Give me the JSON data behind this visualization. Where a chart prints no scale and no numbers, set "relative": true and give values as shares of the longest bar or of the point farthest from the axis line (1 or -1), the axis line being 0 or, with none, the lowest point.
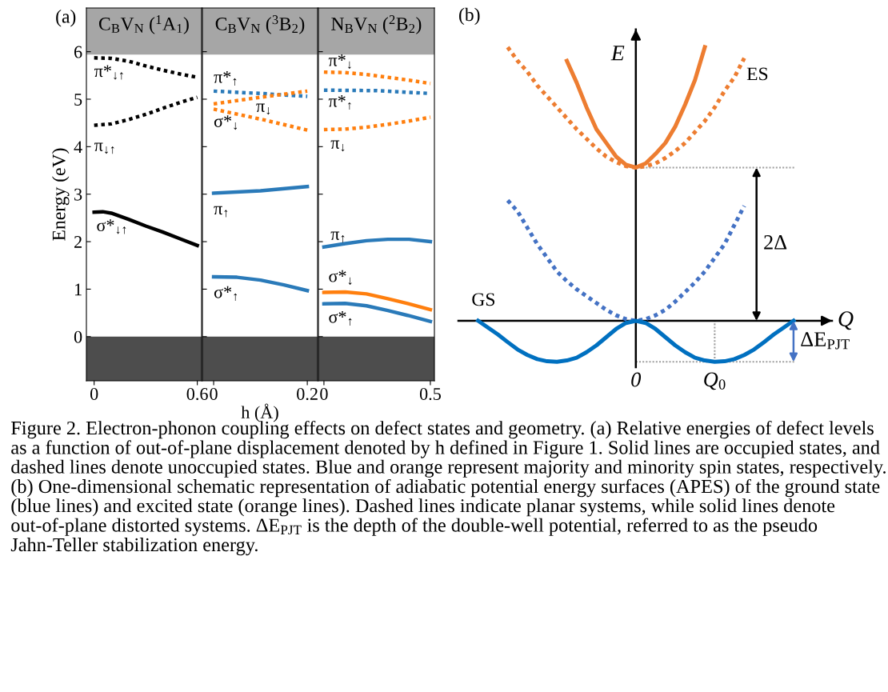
{
  "chart_data": [
    {
      "type": "line",
      "title": "C$_{B}$V$_{N}$ ($^{1}$A$_{1}$)",
      "ylabel": "Energy (eV)",
      "xlim": [
        -0.045,
        0.625
      ],
      "xticks": [
        0,
        0.6
      ],
      "ylim": [
        -0.93,
        6.92
      ],
      "yticks": [
        0,
        1,
        2,
        3,
        4,
        5,
        6
      ],
      "bands": [
        {
          "axis": "y",
          "from": 5.94,
          "to": 6.92,
          "color": "#a6a6a6"
        },
        {
          "axis": "y",
          "from": -0.93,
          "to": 0,
          "color": "#4d4d4d"
        }
      ],
      "series": [
        {
          "name": "π*$_{↓↑}$",
          "color": "#000000",
          "line_style": "dotted",
          "x": [
            0,
            0.1,
            0.2,
            0.3,
            0.4,
            0.5,
            0.6
          ],
          "values": [
            5.87,
            5.86,
            5.8,
            5.7,
            5.61,
            5.53,
            5.46
          ]
        },
        {
          "name": "π$_{↓↑}$",
          "color": "#000000",
          "line_style": "dotted",
          "x": [
            0,
            0.1,
            0.2,
            0.3,
            0.4,
            0.5,
            0.6
          ],
          "values": [
            4.45,
            4.48,
            4.57,
            4.68,
            4.81,
            4.93,
            5.04
          ]
        },
        {
          "name": "σ*$_{↓↑}$",
          "color": "#000000",
          "line_style": "solid",
          "x": [
            0,
            0.05,
            0.1,
            0.2,
            0.3,
            0.4,
            0.5,
            0.6
          ],
          "values": [
            2.62,
            2.63,
            2.6,
            2.47,
            2.33,
            2.2,
            2.06,
            1.92
          ]
        }
      ],
      "annotations": [
        "(a)",
        "Figure 2. Electron-phonon coupling effects on defect states and geometry. (a) Relative energies of defect levels as a function of out-of-plane displacement denoted by h defined in Figure 1. Solid lines are occupied states, and dashed lines denote unoccupied states. Blue and orange represent majority and minority spin states, respectively. (b) One-dimensional schematic representation of adiabatic potential energy surfaces (APES) of the ground state (blue lines) and excited state (orange lines). Dashed lines indicate planar systems, while solid lines denote out-of-plane distorted systems. ΔE$_{PJT}$ is the depth of the double-well potential, referred to as the pseudo Jahn-Teller stabilization energy."
      ]
    },
    {
      "type": "line",
      "title": "C$_{B}$V$_{N}$ ($^{3}$B$_{2}$)",
      "xlabel": "h (Å)",
      "xlim": [
        -0.024,
        0.222
      ],
      "xticks": [
        0,
        0.2
      ],
      "ylim": [
        -0.93,
        6.92
      ],
      "yticks": [
        0,
        1,
        2,
        3,
        4,
        5,
        6
      ],
      "tick_labels": "x",
      "bands": [
        {
          "axis": "y",
          "from": 5.94,
          "to": 6.92,
          "color": "#a6a6a6"
        },
        {
          "axis": "y",
          "from": -0.93,
          "to": 0,
          "color": "#4d4d4d"
        }
      ],
      "series": [
        {
          "name": "π*$_{↑}$",
          "color": "#2a7ab9",
          "line_style": "dotted",
          "x": [
            0,
            0.1,
            0.2
          ],
          "values": [
            5.17,
            5.12,
            5.06
          ]
        },
        {
          "name": "π$_{↓}$",
          "color": "#ff7f0e",
          "line_style": "dotted",
          "x": [
            0,
            0.1,
            0.2
          ],
          "values": [
            4.9,
            5.04,
            5.17
          ]
        },
        {
          "name": "σ*$_{↓}$",
          "color": "#ff7f0e",
          "line_style": "dotted",
          "x": [
            0,
            0.1,
            0.2
          ],
          "values": [
            4.79,
            4.58,
            4.35
          ]
        },
        {
          "name": "π$_{↑}$",
          "color": "#2a7ab9",
          "line_style": "solid",
          "x": [
            0,
            0.1,
            0.2
          ],
          "values": [
            3.02,
            3.07,
            3.16
          ]
        },
        {
          "name": "σ*$_{↑}$",
          "color": "#2a7ab9",
          "line_style": "solid",
          "x": [
            0,
            0.05,
            0.1,
            0.15,
            0.2
          ],
          "values": [
            1.26,
            1.25,
            1.19,
            1.09,
            0.97
          ]
        }
      ]
    },
    {
      "type": "line",
      "title": "N$_{B}$V$_{N}$ ($^{2}$B$_{2}$)",
      "xlim": [
        -0.026,
        0.519
      ],
      "xticks": [
        0,
        0.5
      ],
      "ylim": [
        -0.93,
        6.92
      ],
      "yticks": [
        0,
        1,
        2,
        3,
        4,
        5,
        6
      ],
      "tick_labels": "x",
      "bands": [
        {
          "axis": "y",
          "from": 5.94,
          "to": 6.92,
          "color": "#a6a6a6"
        },
        {
          "axis": "y",
          "from": -0.93,
          "to": 0,
          "color": "#4d4d4d"
        }
      ],
      "series": [
        {
          "name": "π*$_{↓}$",
          "color": "#ff7f0e",
          "line_style": "dotted",
          "x": [
            0,
            0.1,
            0.2,
            0.3,
            0.4,
            0.5
          ],
          "values": [
            5.57,
            5.56,
            5.52,
            5.46,
            5.4,
            5.33
          ]
        },
        {
          "name": "π*$_{↑}$",
          "color": "#2a7ab9",
          "line_style": "dotted",
          "x": [
            0,
            0.25,
            0.5
          ],
          "values": [
            5.19,
            5.18,
            5.12
          ]
        },
        {
          "name": "π$_{↓}$",
          "color": "#ff7f0e",
          "line_style": "dotted",
          "x": [
            0,
            0.1,
            0.2,
            0.3,
            0.4,
            0.5
          ],
          "values": [
            4.36,
            4.37,
            4.41,
            4.47,
            4.54,
            4.62
          ]
        },
        {
          "name": "π$_{↑}$",
          "color": "#2a7ab9",
          "line_style": "solid",
          "x": [
            0,
            0.1,
            0.2,
            0.3,
            0.4,
            0.5
          ],
          "values": [
            1.89,
            1.96,
            2.02,
            2.05,
            2.05,
            2.0
          ]
        },
        {
          "name": "σ*$_{↓}$",
          "color": "#ff7f0e",
          "line_style": "solid",
          "x": [
            0,
            0.1,
            0.2,
            0.3,
            0.4,
            0.5
          ],
          "values": [
            0.93,
            0.94,
            0.9,
            0.8,
            0.69,
            0.57
          ]
        },
        {
          "name": "σ*$_{↑}$",
          "color": "#2a7ab9",
          "line_style": "solid",
          "x": [
            0,
            0.1,
            0.2,
            0.3,
            0.4,
            0.5
          ],
          "values": [
            0.69,
            0.7,
            0.65,
            0.55,
            0.44,
            0.32
          ]
        }
      ]
    },
    {
      "type": "line",
      "relative": true,
      "xlabel": "Q",
      "ylabel": "E",
      "categories": [
        null,
        null,
        null,
        null,
        null,
        null,
        null,
        null,
        null,
        null,
        null,
        null,
        null,
        null,
        null,
        null,
        "0",
        null,
        null,
        null,
        null,
        null,
        null,
        null,
        "Q$_{0}$",
        null,
        null,
        null,
        null,
        null,
        null,
        null,
        null
      ],
      "series": [
        {
          "name": "ES",
          "color": "#ed7d31",
          "line_style": "dotted",
          "values": [
            null,
            null,
            null,
            1.0,
            0.95,
            0.91,
            0.86,
            0.82,
            0.78,
            0.74,
            0.7,
            0.665,
            0.63,
            0.6,
            0.58,
            0.565,
            0.56,
            0.565,
            0.575,
            0.595,
            0.62,
            0.65,
            0.69,
            0.73,
            0.78,
            0.84,
            0.89,
            0.96,
            null,
            null,
            null,
            null,
            null
          ]
        },
        {
          "color": "#ed7d31",
          "line_style": "solid",
          "values": [
            null,
            null,
            null,
            null,
            null,
            null,
            null,
            null,
            null,
            0.95,
            0.87,
            0.78,
            0.7,
            0.65,
            0.6,
            0.57,
            0.56,
            0.575,
            0.61,
            0.65,
            0.71,
            0.79,
            0.88,
            1.0,
            null,
            null,
            null,
            null,
            null,
            null,
            null,
            null,
            null
          ]
        },
        {
          "color": "#4472c4",
          "line_style": "dotted",
          "values": [
            null,
            null,
            null,
            0.44,
            0.4,
            0.34,
            0.28,
            0.23,
            0.18,
            0.145,
            0.115,
            0.09,
            0.065,
            0.04,
            0.02,
            0.006,
            0,
            0.006,
            0.02,
            0.04,
            0.07,
            0.105,
            0.14,
            0.18,
            0.23,
            0.28,
            0.35,
            0.42,
            null,
            null,
            null,
            null,
            null
          ]
        },
        {
          "name": "GS",
          "color": "#0070c0",
          "line_style": "solid",
          "values": [
            0,
            -0.025,
            -0.05,
            -0.078,
            -0.105,
            -0.125,
            -0.14,
            -0.148,
            -0.15,
            -0.145,
            -0.135,
            -0.115,
            -0.09,
            -0.06,
            -0.03,
            -0.008,
            0,
            -0.008,
            -0.03,
            -0.06,
            -0.09,
            -0.115,
            -0.135,
            -0.145,
            -0.15,
            -0.148,
            -0.14,
            -0.125,
            -0.105,
            -0.078,
            -0.05,
            -0.025,
            0
          ]
        }
      ],
      "ref_lines": [
        {
          "axis": "y",
          "value": 0.56,
          "color": "#a0a0a0",
          "line_style": "dotted"
        },
        {
          "axis": "y",
          "value": -0.15,
          "color": "#a0a0a0",
          "line_style": "dotted"
        },
        {
          "axis": "x",
          "value": "Q$_{0}$",
          "color": "#a0a0a0",
          "line_style": "dotted"
        }
      ],
      "annotations": [
        "(b)",
        "2Δ",
        "ΔE$_{PJT}$"
      ]
    }
  ]
}
